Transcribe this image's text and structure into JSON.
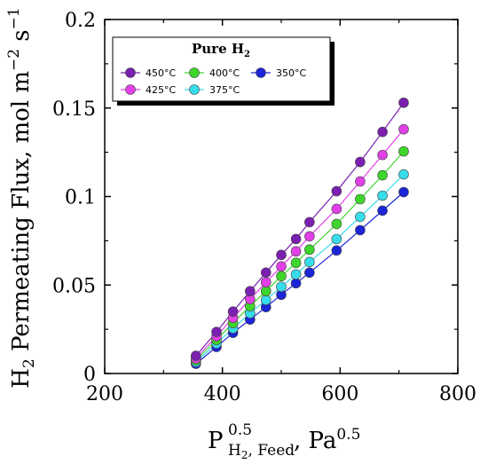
{
  "chart_data": {
    "type": "scatter",
    "ylabel": {
      "main": "H",
      "sub": "2",
      "rest": " Permeating Flux, mol m",
      "exp1": "−2",
      "mid": " s",
      "exp2": "−1"
    },
    "xlabel": {
      "main": "P",
      "sup": "0.5",
      "sub": "H",
      "sub_sub": "2",
      "sub_rest": ", Feed",
      "rest": ", Pa",
      "rest_sup": "0.5"
    },
    "xlim": [
      200,
      800
    ],
    "ylim": [
      0,
      0.2
    ],
    "x_ticks": [
      200,
      400,
      600,
      800
    ],
    "y_ticks": [
      0,
      0.05,
      0.1,
      0.15,
      0.2
    ],
    "x_tick_labels": [
      "200",
      "400",
      "600",
      "800"
    ],
    "y_tick_labels": [
      "0",
      "0.05",
      "0.1",
      "0.15",
      "0.2"
    ],
    "legend": {
      "title_main": "Pure H",
      "title_sub": "2",
      "placement": "top-left"
    },
    "x": [
      355,
      390,
      418,
      447,
      474,
      500,
      525,
      548,
      594,
      634,
      672,
      708
    ],
    "series": [
      {
        "name": "450°C",
        "color": "#7a1fb0",
        "values": [
          0.01,
          0.0235,
          0.035,
          0.0465,
          0.057,
          0.067,
          0.076,
          0.0855,
          0.103,
          0.1195,
          0.1365,
          0.153
        ]
      },
      {
        "name": "425°C",
        "color": "#e040e6",
        "values": [
          0.0085,
          0.021,
          0.0315,
          0.042,
          0.0515,
          0.0605,
          0.069,
          0.0775,
          0.093,
          0.1085,
          0.1235,
          0.138
        ]
      },
      {
        "name": "400°C",
        "color": "#3ed62a",
        "values": [
          0.0075,
          0.019,
          0.0285,
          0.038,
          0.0465,
          0.055,
          0.0625,
          0.07,
          0.0845,
          0.0985,
          0.112,
          0.1255
        ]
      },
      {
        "name": "375°C",
        "color": "#36dcea",
        "values": [
          0.0065,
          0.017,
          0.0255,
          0.034,
          0.0415,
          0.049,
          0.056,
          0.063,
          0.076,
          0.0885,
          0.1005,
          0.1125
        ]
      },
      {
        "name": "350°C",
        "color": "#1c24d8",
        "values": [
          0.0055,
          0.015,
          0.023,
          0.0305,
          0.0375,
          0.0445,
          0.051,
          0.057,
          0.0695,
          0.081,
          0.092,
          0.1025
        ]
      }
    ]
  }
}
